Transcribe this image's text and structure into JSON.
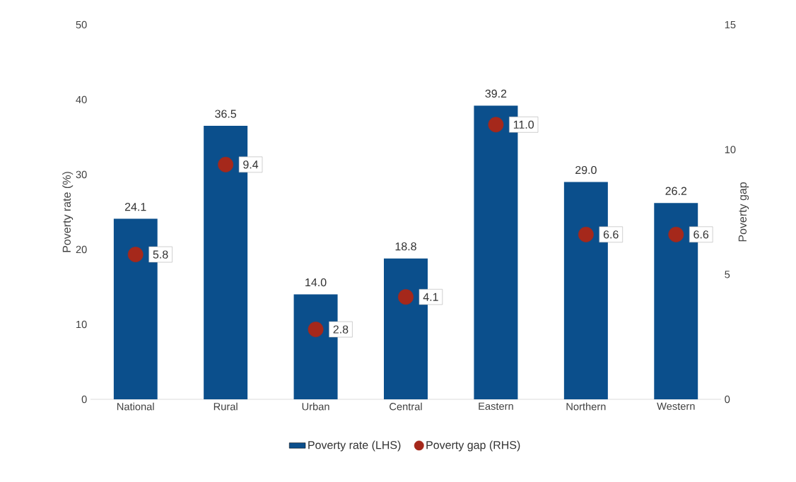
{
  "chart_data": {
    "type": "bar",
    "categories": [
      "National",
      "Rural",
      "Urban",
      "Central",
      "Eastern",
      "Northern",
      "Western"
    ],
    "ylabel": "Poverty rate (%)",
    "y2label": "Poverty gap",
    "ylim": [
      0,
      50
    ],
    "yticks": [
      0,
      10,
      20,
      30,
      40,
      50
    ],
    "y2lim": [
      0,
      15
    ],
    "y2ticks": [
      0,
      5,
      10,
      15
    ],
    "legend": "bottom",
    "grid": false,
    "series": [
      {
        "name": "Poverty rate (LHS)",
        "color": "#0b4f8c",
        "values": [
          24.1,
          36.5,
          14.0,
          18.8,
          39.2,
          29.0,
          26.2
        ],
        "value_labels": [
          "24.1",
          "36.5",
          "14.0",
          "18.8",
          "39.2",
          "29.0",
          "26.2"
        ]
      },
      {
        "name": "Poverty gap (RHS)",
        "type": "scatter",
        "axis": "y2",
        "color": "#a5281b",
        "values": [
          5.8,
          9.4,
          2.8,
          4.1,
          11.0,
          6.6,
          6.6
        ],
        "value_labels": [
          "5.8",
          "9.4",
          "2.8",
          "4.1",
          "11.0",
          "6.6",
          "6.6"
        ]
      }
    ]
  }
}
